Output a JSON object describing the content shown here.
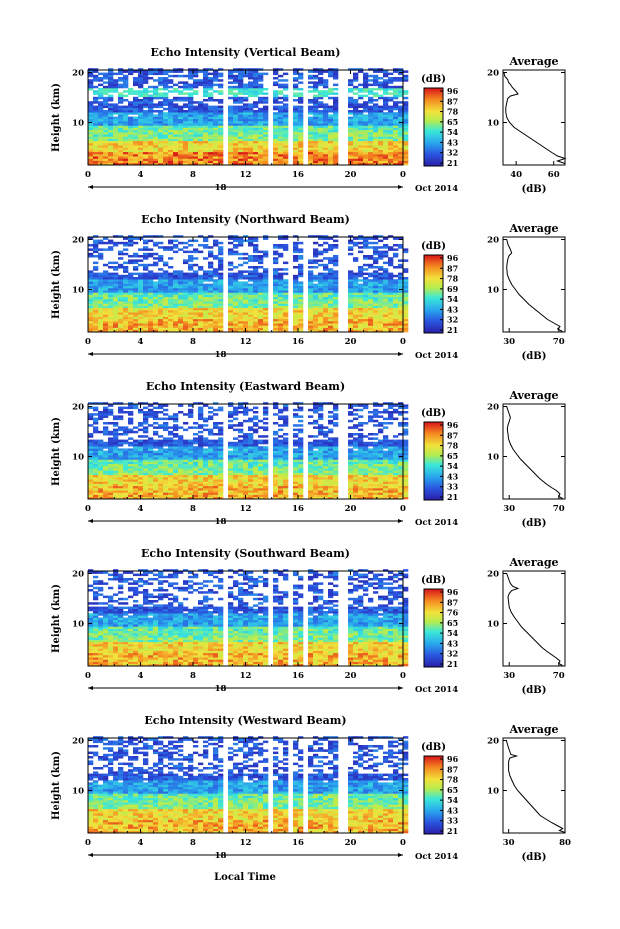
{
  "figure": {
    "xlabel": "Local Time",
    "colorbar_unit": "(dB)",
    "colorbar_ticks": [
      "96",
      "87",
      "78",
      "65",
      "54",
      "43",
      "32",
      "21"
    ]
  },
  "chart_data": [
    {
      "type": "heatmap",
      "title": "Echo Intensity (Vertical Beam)",
      "ylabel": "Height (km)",
      "x_ticks": [
        "0",
        "4",
        "8",
        "12",
        "16",
        "20",
        "0"
      ],
      "y_ticks": [
        "20",
        "10"
      ],
      "xlim": [
        0,
        24
      ],
      "ylim": [
        1.5,
        20.5
      ],
      "date_label": "18",
      "date_suffix": "Oct 2014",
      "gaps": [
        [
          0.8,
          1.1
        ],
        [
          3.1,
          3.4
        ],
        [
          5.9,
          6.0
        ],
        [
          10.2,
          10.5
        ],
        [
          13.7,
          14.0
        ],
        [
          15.1,
          15.4
        ],
        [
          16.3,
          16.5
        ],
        [
          17.3,
          17.5
        ],
        [
          18.7,
          19.5
        ]
      ],
      "colorbar_ticks": [
        "96",
        "87",
        "78",
        "65",
        "54",
        "43",
        "32",
        "21"
      ],
      "average": {
        "title": "Average",
        "xlabel": "(dB)",
        "x_ticks": [
          "40",
          "60"
        ],
        "xlim": [
          33,
          66
        ],
        "y_ticks": [
          "20",
          "10"
        ],
        "points": [
          [
            33.5,
            20
          ],
          [
            34,
            19.2
          ],
          [
            35.5,
            18.6
          ],
          [
            36,
            18
          ],
          [
            37,
            17.6
          ],
          [
            38,
            17
          ],
          [
            40,
            16.2
          ],
          [
            41,
            15.7
          ],
          [
            37,
            15.3
          ],
          [
            35.5,
            14.8
          ],
          [
            35,
            14
          ],
          [
            34.5,
            13
          ],
          [
            34.5,
            12
          ],
          [
            35,
            11
          ],
          [
            36.5,
            10
          ],
          [
            39,
            9
          ],
          [
            43,
            8
          ],
          [
            47,
            7
          ],
          [
            51,
            6
          ],
          [
            55,
            5
          ],
          [
            59,
            4
          ],
          [
            62,
            3.3
          ],
          [
            66,
            2.8
          ],
          [
            62,
            2.3
          ],
          [
            66,
            1.8
          ]
        ]
      }
    },
    {
      "type": "heatmap",
      "title": "Echo Intensity (Northward Beam)",
      "ylabel": "Height (km)",
      "x_ticks": [
        "0",
        "4",
        "8",
        "12",
        "16",
        "20",
        "0"
      ],
      "y_ticks": [
        "20",
        "10"
      ],
      "xlim": [
        0,
        24
      ],
      "ylim": [
        1.5,
        20.5
      ],
      "date_label": "18",
      "date_suffix": "Oct 2014",
      "gaps": [
        [
          0.8,
          1.1
        ],
        [
          3.1,
          3.4
        ],
        [
          5.9,
          6.0
        ],
        [
          10.2,
          10.5
        ],
        [
          13.7,
          14.0
        ],
        [
          15.1,
          15.4
        ],
        [
          16.3,
          16.5
        ],
        [
          17.3,
          17.5
        ],
        [
          18.7,
          19.5
        ]
      ],
      "colorbar_ticks": [
        "96",
        "87",
        "78",
        "69",
        "54",
        "43",
        "32",
        "21"
      ],
      "average": {
        "title": "Average",
        "xlabel": "(dB)",
        "x_ticks": [
          "30",
          "70"
        ],
        "xlim": [
          25,
          75
        ],
        "y_ticks": [
          "20",
          "10"
        ],
        "points": [
          [
            28,
            20
          ],
          [
            29,
            19
          ],
          [
            30,
            18.5
          ],
          [
            31,
            18
          ],
          [
            32,
            17.3
          ],
          [
            30,
            16.8
          ],
          [
            29,
            16.2
          ],
          [
            28.5,
            15.5
          ],
          [
            28,
            14.5
          ],
          [
            28.5,
            13
          ],
          [
            30,
            12
          ],
          [
            32,
            11
          ],
          [
            35,
            10
          ],
          [
            38,
            9
          ],
          [
            42,
            8
          ],
          [
            46,
            7
          ],
          [
            51,
            6
          ],
          [
            56,
            5
          ],
          [
            61,
            4
          ],
          [
            66,
            3.3
          ],
          [
            71,
            2.6
          ],
          [
            69,
            2.1
          ],
          [
            73,
            1.6
          ]
        ]
      }
    },
    {
      "type": "heatmap",
      "title": "Echo Intensity (Eastward Beam)",
      "ylabel": "Height (km)",
      "x_ticks": [
        "0",
        "4",
        "8",
        "12",
        "16",
        "20",
        "0"
      ],
      "y_ticks": [
        "20",
        "10"
      ],
      "xlim": [
        0,
        24
      ],
      "ylim": [
        1.5,
        20.5
      ],
      "date_label": "18",
      "date_suffix": "Oct 2014",
      "gaps": [
        [
          0.8,
          1.1
        ],
        [
          3.1,
          3.4
        ],
        [
          5.9,
          6.0
        ],
        [
          10.2,
          10.5
        ],
        [
          13.7,
          14.0
        ],
        [
          15.1,
          15.4
        ],
        [
          16.3,
          16.5
        ],
        [
          17.3,
          17.5
        ],
        [
          18.7,
          19.5
        ]
      ],
      "colorbar_ticks": [
        "96",
        "87",
        "78",
        "65",
        "54",
        "43",
        "33",
        "21"
      ],
      "average": {
        "title": "Average",
        "xlabel": "(dB)",
        "x_ticks": [
          "30",
          "70"
        ],
        "xlim": [
          25,
          75
        ],
        "y_ticks": [
          "20",
          "10"
        ],
        "points": [
          [
            28,
            20
          ],
          [
            29,
            19.2
          ],
          [
            30,
            18.5
          ],
          [
            31,
            17.8
          ],
          [
            30,
            17
          ],
          [
            29,
            16.3
          ],
          [
            28.5,
            15.5
          ],
          [
            29,
            14.5
          ],
          [
            29.5,
            13.5
          ],
          [
            31,
            12.5
          ],
          [
            33,
            11.5
          ],
          [
            36,
            10.5
          ],
          [
            39,
            9.5
          ],
          [
            43,
            8.5
          ],
          [
            47,
            7.5
          ],
          [
            51,
            6.5
          ],
          [
            55,
            5.5
          ],
          [
            60,
            4.5
          ],
          [
            64,
            3.8
          ],
          [
            68,
            3.2
          ],
          [
            71,
            2.5
          ],
          [
            70,
            2.0
          ],
          [
            73,
            1.6
          ]
        ]
      }
    },
    {
      "type": "heatmap",
      "title": "Echo Intensity (Southward Beam)",
      "ylabel": "Height (km)",
      "x_ticks": [
        "0",
        "4",
        "8",
        "12",
        "16",
        "20",
        "0"
      ],
      "y_ticks": [
        "20",
        "10"
      ],
      "xlim": [
        0,
        24
      ],
      "ylim": [
        1.5,
        20.5
      ],
      "date_label": "18",
      "date_suffix": "Oct 2014",
      "gaps": [
        [
          0.8,
          1.1
        ],
        [
          3.1,
          3.4
        ],
        [
          5.9,
          6.0
        ],
        [
          10.2,
          10.5
        ],
        [
          13.7,
          14.0
        ],
        [
          15.1,
          15.4
        ],
        [
          16.3,
          16.5
        ],
        [
          17.3,
          17.5
        ],
        [
          18.7,
          19.5
        ]
      ],
      "colorbar_ticks": [
        "96",
        "87",
        "76",
        "65",
        "54",
        "43",
        "32",
        "21"
      ],
      "average": {
        "title": "Average",
        "xlabel": "(dB)",
        "x_ticks": [
          "30",
          "70"
        ],
        "xlim": [
          25,
          75
        ],
        "y_ticks": [
          "20",
          "10"
        ],
        "points": [
          [
            28,
            20
          ],
          [
            29,
            19.3
          ],
          [
            30,
            18.6
          ],
          [
            31,
            18
          ],
          [
            33,
            17.4
          ],
          [
            37,
            17
          ],
          [
            32,
            16.6
          ],
          [
            30,
            16
          ],
          [
            29,
            15.3
          ],
          [
            29.5,
            14.3
          ],
          [
            30,
            13.3
          ],
          [
            31.5,
            12.3
          ],
          [
            34,
            11.3
          ],
          [
            37,
            10.3
          ],
          [
            40,
            9.3
          ],
          [
            44,
            8.3
          ],
          [
            48,
            7.3
          ],
          [
            52,
            6.3
          ],
          [
            56,
            5.3
          ],
          [
            60,
            4.5
          ],
          [
            64,
            3.8
          ],
          [
            68,
            3.1
          ],
          [
            71,
            2.5
          ],
          [
            70,
            2.0
          ],
          [
            73,
            1.6
          ]
        ]
      }
    },
    {
      "type": "heatmap",
      "title": "Echo Intensity (Westward Beam)",
      "ylabel": "Height (km)",
      "x_ticks": [
        "0",
        "4",
        "8",
        "12",
        "16",
        "20",
        "0"
      ],
      "y_ticks": [
        "20",
        "10"
      ],
      "xlim": [
        0,
        24
      ],
      "ylim": [
        1.5,
        20.5
      ],
      "date_label": "18",
      "date_suffix": "Oct 2014",
      "gaps": [
        [
          0.8,
          1.1
        ],
        [
          3.1,
          3.4
        ],
        [
          5.9,
          6.0
        ],
        [
          10.2,
          10.5
        ],
        [
          13.7,
          14.0
        ],
        [
          15.1,
          15.4
        ],
        [
          16.3,
          16.5
        ],
        [
          17.3,
          17.5
        ],
        [
          18.7,
          19.5
        ]
      ],
      "colorbar_ticks": [
        "96",
        "87",
        "78",
        "65",
        "54",
        "43",
        "33",
        "21"
      ],
      "average": {
        "title": "Average",
        "xlabel": "(dB)",
        "x_ticks": [
          "30",
          "80"
        ],
        "xlim": [
          25,
          80
        ],
        "y_ticks": [
          "20",
          "10"
        ],
        "points": [
          [
            28,
            20
          ],
          [
            29,
            19.2
          ],
          [
            30,
            18.5
          ],
          [
            31,
            17.8
          ],
          [
            32,
            17.2
          ],
          [
            37,
            16.9
          ],
          [
            31,
            16.5
          ],
          [
            30,
            15.8
          ],
          [
            30,
            15
          ],
          [
            30,
            14
          ],
          [
            31,
            13
          ],
          [
            33,
            12
          ],
          [
            35,
            11
          ],
          [
            38,
            10
          ],
          [
            42,
            9
          ],
          [
            46,
            8
          ],
          [
            50,
            7
          ],
          [
            54,
            6
          ],
          [
            58,
            5
          ],
          [
            63,
            4.3
          ],
          [
            68,
            3.6
          ],
          [
            73,
            3.0
          ],
          [
            78,
            2.4
          ],
          [
            75,
            2.0
          ],
          [
            80,
            1.6
          ]
        ]
      }
    }
  ]
}
